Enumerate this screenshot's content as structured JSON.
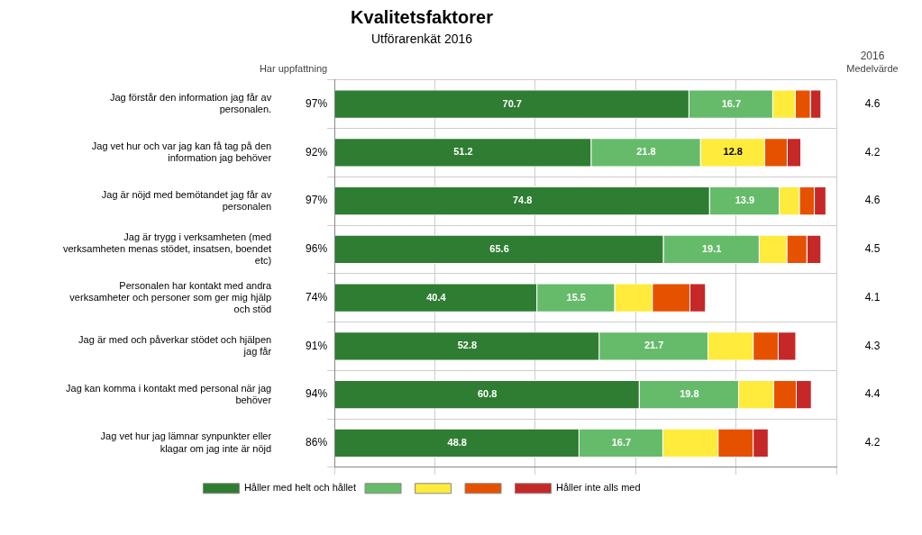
{
  "chart_data": {
    "type": "bar",
    "orientation": "horizontal",
    "stacked": true,
    "title": "Kvalitetsfaktorer",
    "subtitle": "Utförarenkät 2016",
    "categories": [
      "Jag förstår den information jag får av personalen.",
      "Jag vet hur och var jag kan få tag på den information jag behöver",
      "Jag är nöjd med bemötandet jag får av personalen",
      "Jag är trygg i verksamheten (med verksamheten menas stödet, insatsen, boendet etc)",
      "Personalen har kontakt med andra verksamheter och personer som ger mig hjälp och stöd",
      "Jag är med och påverkar stödet och hjälpen jag får",
      "Jag kan komma i kontakt med personal när jag behöver",
      "Jag vet hur jag lämnar synpunkter eller klagar om jag inte är nöjd"
    ],
    "series": [
      {
        "name": "Håller med helt och hållet",
        "color": "#2e7d32",
        "values": [
          70.7,
          51.2,
          74.8,
          65.6,
          40.4,
          52.8,
          60.8,
          48.8
        ],
        "data_labels": true
      },
      {
        "color": "#66bb6a",
        "values": [
          16.7,
          21.8,
          13.9,
          19.1,
          15.5,
          21.7,
          19.8,
          16.7
        ],
        "data_labels": true
      },
      {
        "color": "#ffeb3b",
        "values": [
          4.5,
          12.8,
          4.0,
          5.5,
          7.5,
          9.0,
          7.0,
          11.0
        ],
        "value_labels": [
          null,
          "12.8",
          null,
          null,
          null,
          null,
          null,
          null
        ]
      },
      {
        "color": "#e65100",
        "values": [
          3.0,
          4.5,
          3.0,
          4.0,
          7.5,
          5.0,
          4.5,
          7.0
        ]
      },
      {
        "name": "Håller inte alls med",
        "color": "#c62828",
        "values": [
          2.1,
          2.7,
          2.3,
          2.8,
          3.1,
          3.5,
          3.0,
          3.0
        ]
      }
    ],
    "xlim": [
      0,
      100
    ],
    "xticks": [
      0,
      20,
      40,
      60,
      80,
      100
    ],
    "grid": true,
    "tick_labels": "y",
    "legend": "bottom",
    "columns": [
      {
        "header": [
          "Har uppfattning"
        ],
        "values": [
          97,
          92,
          97,
          96,
          74,
          91,
          94,
          86
        ],
        "value_labels": [
          "97%",
          "92%",
          "97%",
          "96%",
          "74%",
          "91%",
          "94%",
          "86%"
        ]
      },
      {
        "header": [
          "2016",
          "Medelvärde"
        ],
        "values": [
          4.6,
          4.2,
          4.6,
          4.5,
          4.1,
          4.3,
          4.4,
          4.2
        ]
      }
    ]
  }
}
